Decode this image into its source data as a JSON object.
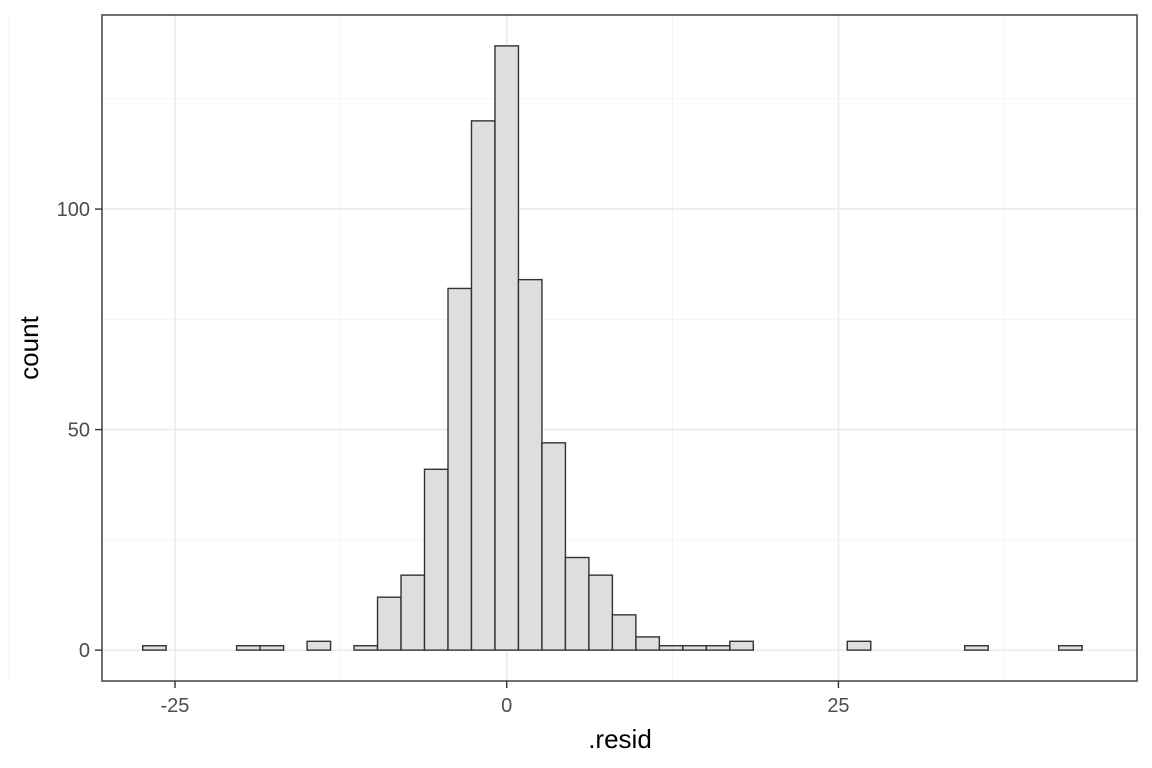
{
  "chart_data": {
    "type": "bar",
    "xlabel": ".resid",
    "ylabel": "count",
    "xlim": [
      -30.5,
      47.5
    ],
    "ylim": [
      -7,
      144
    ],
    "x_breaks": [
      -25,
      0,
      25
    ],
    "x_minor_breaks": [
      -37.5,
      -12.5,
      12.5,
      37.5
    ],
    "y_breaks": [
      0,
      50,
      100
    ],
    "y_minor_breaks": [
      25,
      75,
      125
    ],
    "x_tick_labels": [
      "-25",
      "0",
      "25"
    ],
    "y_tick_labels": [
      "0",
      "50",
      "100"
    ],
    "grid": true,
    "bin_width": 1.77,
    "bins": [
      {
        "x": -26.55,
        "count": 1
      },
      {
        "x": -24.78,
        "count": 0
      },
      {
        "x": -23.01,
        "count": 0
      },
      {
        "x": -21.24,
        "count": 0
      },
      {
        "x": -19.47,
        "count": 1
      },
      {
        "x": -17.7,
        "count": 1
      },
      {
        "x": -15.93,
        "count": 0
      },
      {
        "x": -14.16,
        "count": 2
      },
      {
        "x": -12.39,
        "count": 0
      },
      {
        "x": -10.62,
        "count": 1
      },
      {
        "x": -8.85,
        "count": 12
      },
      {
        "x": -7.08,
        "count": 17
      },
      {
        "x": -5.31,
        "count": 41
      },
      {
        "x": -3.54,
        "count": 82
      },
      {
        "x": -1.77,
        "count": 120
      },
      {
        "x": 0.0,
        "count": 137
      },
      {
        "x": 1.77,
        "count": 84
      },
      {
        "x": 3.54,
        "count": 47
      },
      {
        "x": 5.31,
        "count": 21
      },
      {
        "x": 7.08,
        "count": 17
      },
      {
        "x": 8.85,
        "count": 8
      },
      {
        "x": 10.62,
        "count": 3
      },
      {
        "x": 12.39,
        "count": 1
      },
      {
        "x": 14.16,
        "count": 1
      },
      {
        "x": 15.93,
        "count": 1
      },
      {
        "x": 17.7,
        "count": 2
      },
      {
        "x": 19.47,
        "count": 0
      },
      {
        "x": 21.24,
        "count": 0
      },
      {
        "x": 23.01,
        "count": 0
      },
      {
        "x": 24.78,
        "count": 0
      },
      {
        "x": 26.55,
        "count": 2
      },
      {
        "x": 28.32,
        "count": 0
      },
      {
        "x": 30.09,
        "count": 0
      },
      {
        "x": 31.86,
        "count": 0
      },
      {
        "x": 33.63,
        "count": 0
      },
      {
        "x": 35.4,
        "count": 1
      },
      {
        "x": 37.17,
        "count": 0
      },
      {
        "x": 38.94,
        "count": 0
      },
      {
        "x": 40.71,
        "count": 0
      },
      {
        "x": 42.48,
        "count": 1
      }
    ],
    "colors": {
      "bar_fill": "#dedede",
      "bar_outline": "#333333",
      "panel_border": "#333333",
      "grid": "#ebebeb"
    }
  }
}
